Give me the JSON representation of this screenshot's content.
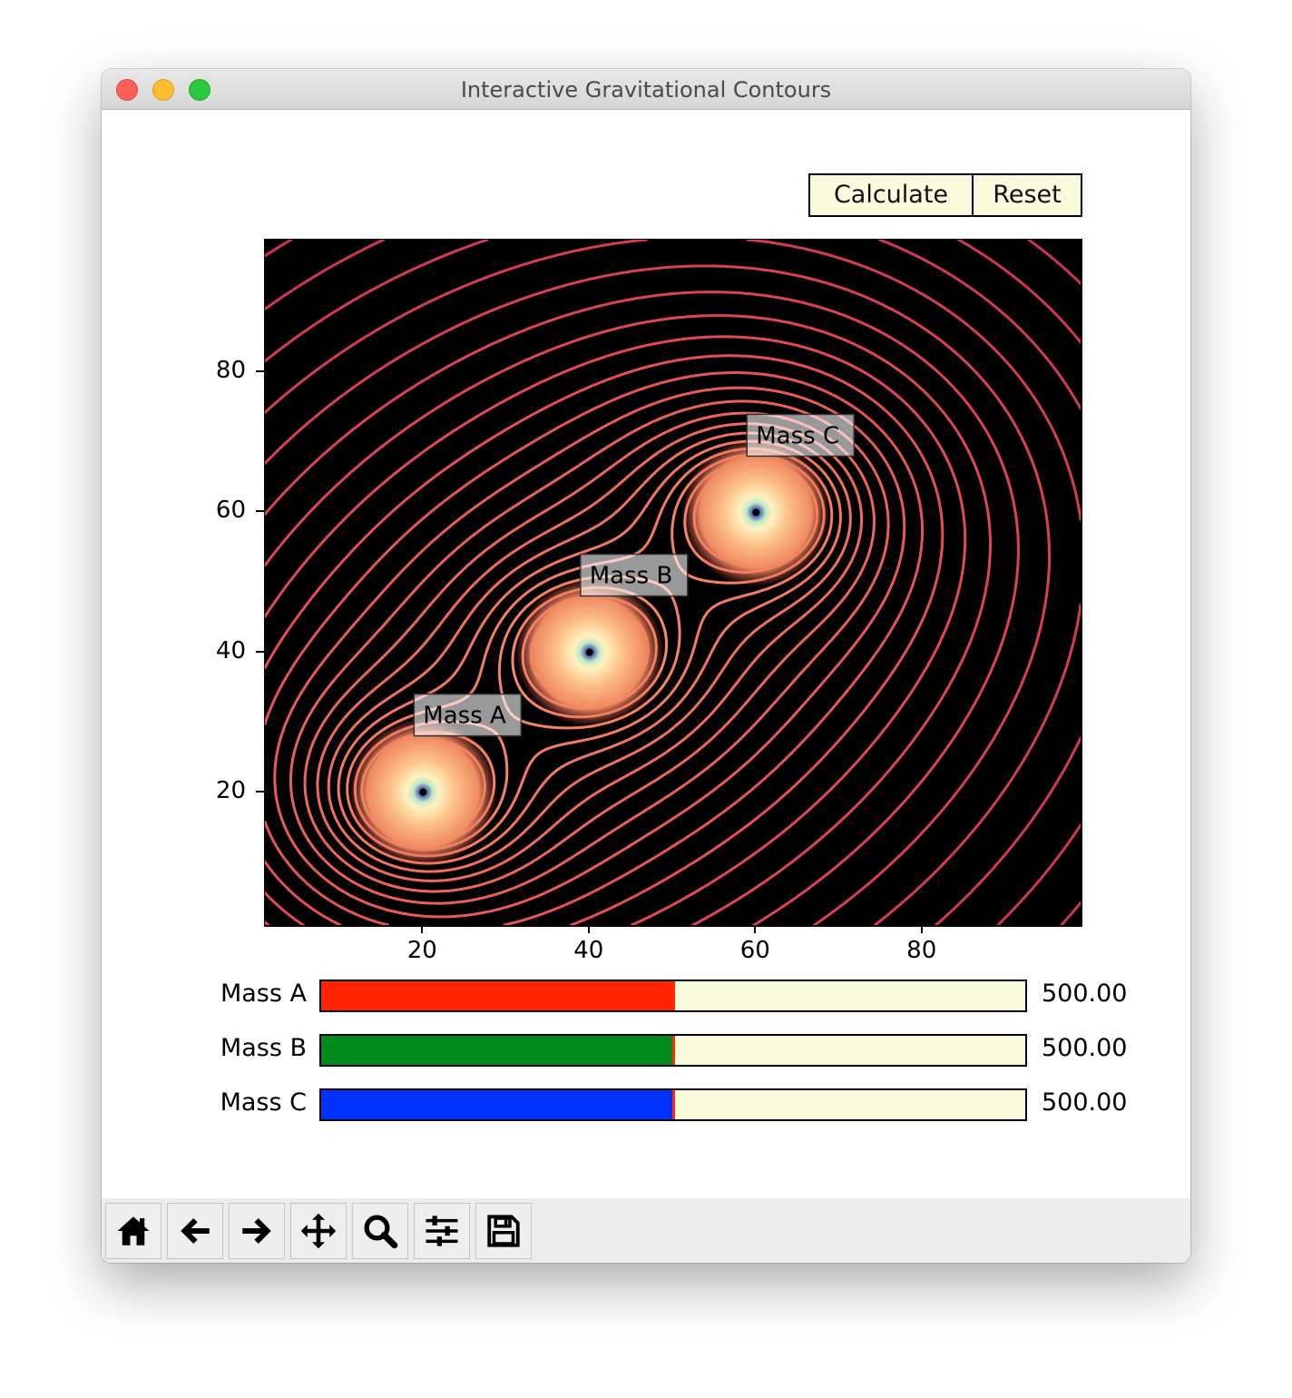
{
  "window": {
    "title": "Interactive Gravitational Contours"
  },
  "buttons": {
    "calculate": "Calculate",
    "reset": "Reset"
  },
  "plot": {
    "xticks": [
      "20",
      "40",
      "60",
      "80"
    ],
    "yticks": [
      "80",
      "60",
      "40",
      "20"
    ],
    "annotations": [
      "Mass A",
      "Mass B",
      "Mass C"
    ]
  },
  "chart_data": {
    "type": "contour",
    "xlim": [
      1,
      99
    ],
    "ylim": [
      1,
      99
    ],
    "background": "#000000",
    "masses": [
      {
        "label": "Mass A",
        "x": 20,
        "y": 20,
        "mass": 500.0
      },
      {
        "label": "Mass B",
        "x": 40,
        "y": 40,
        "mass": 500.0
      },
      {
        "label": "Mass C",
        "x": 60,
        "y": 60,
        "mass": 500.0
      }
    ]
  },
  "sliders": [
    {
      "label": "Mass A",
      "value": "500.00",
      "fraction": 0.5,
      "color": "#ff2200"
    },
    {
      "label": "Mass B",
      "value": "500.00",
      "fraction": 0.5,
      "color": "#008b1f"
    },
    {
      "label": "Mass C",
      "value": "500.00",
      "fraction": 0.5,
      "color": "#0031ff"
    }
  ],
  "toolbar": {
    "icons": [
      "home-icon",
      "back-arrow-icon",
      "forward-arrow-icon",
      "pan-icon",
      "zoom-icon",
      "configure-subplots-icon",
      "save-icon"
    ]
  }
}
